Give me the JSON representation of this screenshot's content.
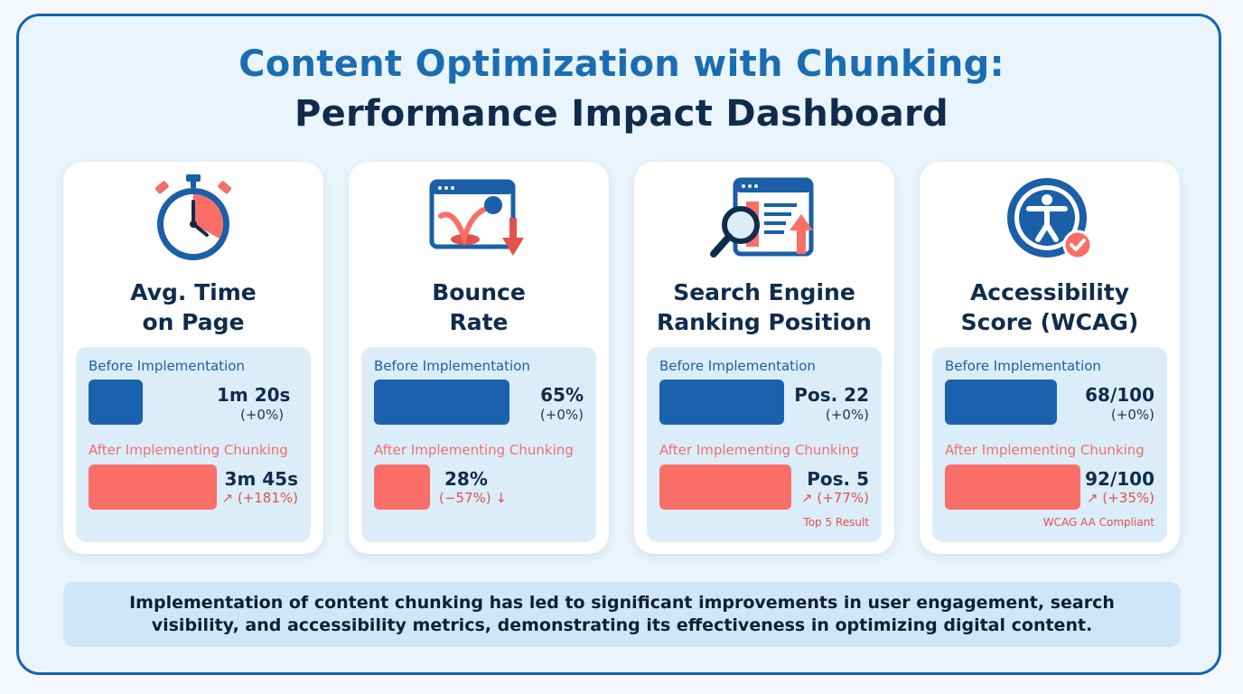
{
  "header": {
    "title_line1": "Content Optimization with Chunking:",
    "title_line2": "Performance Impact Dashboard"
  },
  "labels": {
    "before": "Before Implementation",
    "after": "After Implementing Chunking"
  },
  "colors": {
    "before": "#1a62ae",
    "after": "#fa6e68",
    "title_accent": "#1a6db3",
    "title_dark": "#0f2c4c"
  },
  "cards": [
    {
      "icon": "stopwatch-icon",
      "title_line1": "Avg. Time",
      "title_line2": "on Page",
      "before_value": "1m 20s",
      "before_change": "(+0%)",
      "after_value": "3m 45s",
      "after_change": "↗ (+181%)",
      "note": ""
    },
    {
      "icon": "bounce-icon",
      "title_line1": "Bounce",
      "title_line2": "Rate",
      "before_value": "65%",
      "before_change": "(+0%)",
      "after_value": "28%",
      "after_change": "(−57%) ↓",
      "note": ""
    },
    {
      "icon": "search-ranking-icon",
      "title_line1": "Search Engine",
      "title_line2": "Ranking Position",
      "before_value": "Pos. 22",
      "before_change": "(+0%)",
      "after_value": "Pos. 5",
      "after_change": "↗ (+77%)",
      "note": "Top 5 Result"
    },
    {
      "icon": "accessibility-icon",
      "title_line1": "Accessibility",
      "title_line2": "Score (WCAG)",
      "before_value": "68/100",
      "before_change": "(+0%)",
      "after_value": "92/100",
      "after_change": "↗ (+35%)",
      "note": "WCAG AA Compliant"
    }
  ],
  "summary": "Implementation of content chunking has led to significant improvements in user engagement, search visibility, and accessibility metrics, demonstrating its effectiveness in optimizing digital content.",
  "chart_data": {
    "type": "bar",
    "categories": [
      "Avg. Time on Page",
      "Bounce Rate",
      "Search Engine Ranking Position",
      "Accessibility Score (WCAG)"
    ],
    "series": [
      {
        "name": "Before Implementation",
        "values": [
          80,
          65,
          22,
          68
        ],
        "units": [
          "seconds",
          "%",
          "position",
          "score/100"
        ]
      },
      {
        "name": "After Implementing Chunking",
        "values": [
          225,
          28,
          5,
          92
        ],
        "units": [
          "seconds",
          "%",
          "position",
          "score/100"
        ]
      }
    ]
  }
}
